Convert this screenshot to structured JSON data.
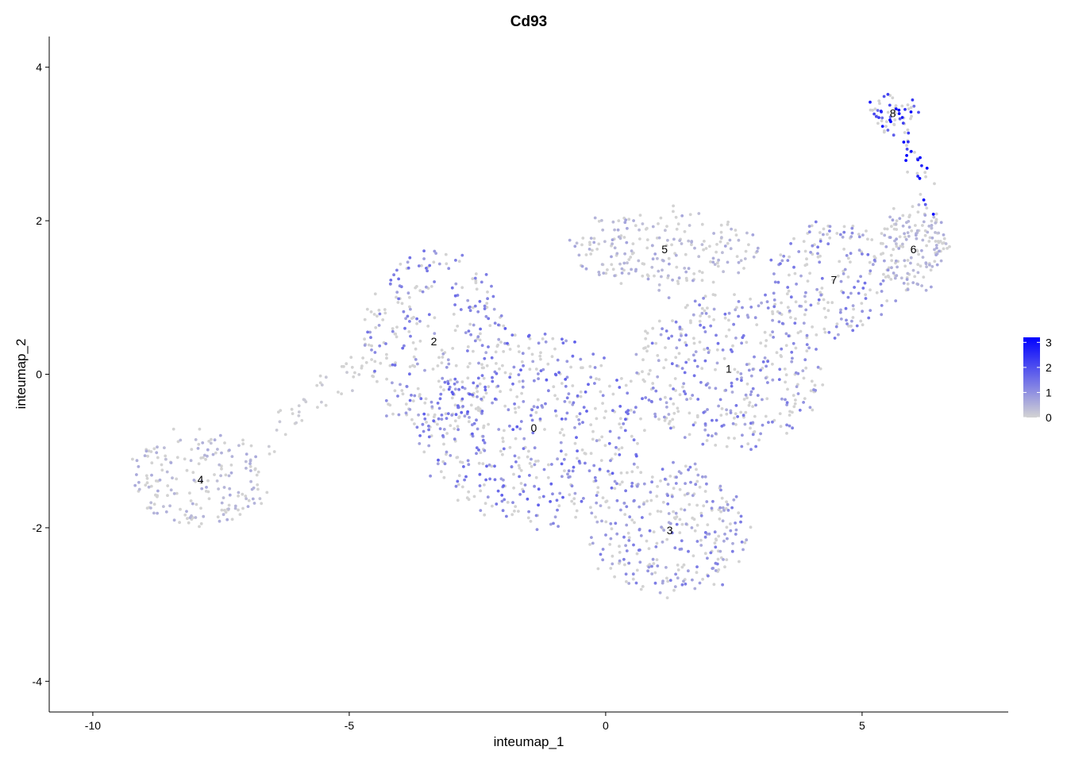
{
  "chart_data": {
    "type": "scatter",
    "title": "Cd93",
    "xlabel": "inteumap_1",
    "ylabel": "inteumap_2",
    "xlim": [
      -10.85,
      7.85
    ],
    "ylim": [
      -4.4,
      4.4
    ],
    "x_ticks": [
      -10,
      -5,
      0,
      5
    ],
    "y_ticks": [
      -4,
      -2,
      0,
      2,
      4
    ],
    "x_tick_labels": [
      "-10",
      "-5",
      "0",
      "5"
    ],
    "y_tick_labels": [
      "-4",
      "-2",
      "0",
      "2",
      "4"
    ],
    "grid": false,
    "legend": {
      "placement": "right",
      "type": "colorbar",
      "min": 0,
      "max": 3.2,
      "ticks": [
        0,
        1,
        2,
        3
      ],
      "tick_labels": [
        "0",
        "1",
        "2",
        "3"
      ],
      "low_color": "#d3d3d3",
      "high_color": "#0000ff"
    },
    "cluster_labels": [
      {
        "label": "0",
        "x": -1.4,
        "y": -0.7
      },
      {
        "label": "1",
        "x": 2.4,
        "y": 0.07
      },
      {
        "label": "2",
        "x": -3.35,
        "y": 0.43
      },
      {
        "label": "3",
        "x": 1.25,
        "y": -2.03
      },
      {
        "label": "4",
        "x": -7.9,
        "y": -1.37
      },
      {
        "label": "5",
        "x": 1.15,
        "y": 1.63
      },
      {
        "label": "6",
        "x": 6.0,
        "y": 1.63
      },
      {
        "label": "7",
        "x": 4.45,
        "y": 1.23
      },
      {
        "label": "8",
        "x": 5.6,
        "y": 3.4
      }
    ],
    "clusters": [
      {
        "label": "0",
        "cx": -1.4,
        "cy": -0.7,
        "rx": 2.2,
        "ry": 1.25,
        "n": 480,
        "mean_expr": 0.85
      },
      {
        "label": "1",
        "cx": 2.4,
        "cy": 0.07,
        "rx": 1.9,
        "ry": 1.0,
        "n": 380,
        "mean_expr": 0.7
      },
      {
        "label": "2",
        "cx": -3.35,
        "cy": 0.43,
        "rx": 1.4,
        "ry": 1.2,
        "n": 300,
        "mean_expr": 0.75
      },
      {
        "label": "3",
        "cx": 1.25,
        "cy": -2.03,
        "rx": 1.6,
        "ry": 0.85,
        "n": 300,
        "mean_expr": 0.65
      },
      {
        "label": "4",
        "cx": -7.9,
        "cy": -1.37,
        "rx": 1.35,
        "ry": 0.6,
        "n": 190,
        "mean_expr": 0.3
      },
      {
        "label": "5",
        "cx": 1.15,
        "cy": 1.63,
        "rx": 1.9,
        "ry": 0.5,
        "n": 210,
        "mean_expr": 0.35
      },
      {
        "label": "6",
        "cx": 6.0,
        "cy": 1.63,
        "rx": 0.7,
        "ry": 0.55,
        "n": 150,
        "mean_expr": 0.35
      },
      {
        "label": "7",
        "cx": 4.45,
        "cy": 1.23,
        "rx": 1.2,
        "ry": 0.75,
        "n": 190,
        "mean_expr": 0.7
      },
      {
        "label": "8",
        "cx": 5.6,
        "cy": 3.4,
        "rx": 0.55,
        "ry": 0.25,
        "n": 55,
        "mean_expr": 1.6
      }
    ],
    "bridge": {
      "x_start": -6.6,
      "x_end": -4.6,
      "y_start": -0.9,
      "y_end": 0.3,
      "n": 45,
      "mean_expr": 0.1
    },
    "arm_8_to_6": {
      "x_start": 5.8,
      "x_end": 6.5,
      "y_start": 3.2,
      "y_end": 1.9,
      "n": 35,
      "mean_expr": 1.8
    }
  }
}
